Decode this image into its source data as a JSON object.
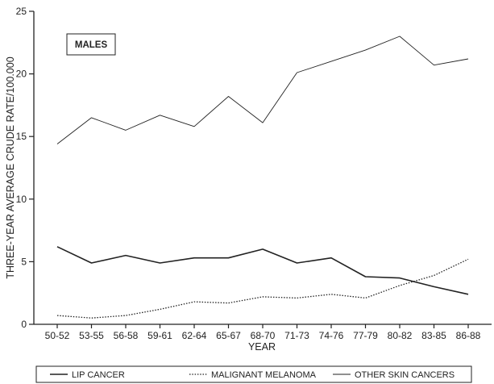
{
  "chart_data": {
    "type": "line",
    "categories": [
      "50-52",
      "53-55",
      "56-58",
      "59-61",
      "62-64",
      "65-67",
      "68-70",
      "71-73",
      "74-76",
      "77-79",
      "80-82",
      "83-85",
      "86-88"
    ],
    "series": [
      {
        "name": "LIP CANCER",
        "style": "solid",
        "values": [
          6.2,
          4.9,
          5.5,
          4.9,
          5.3,
          5.3,
          6.0,
          4.9,
          5.3,
          3.8,
          3.7,
          3.0,
          2.4
        ]
      },
      {
        "name": "MALIGNANT MELANOMA",
        "style": "dotted",
        "values": [
          0.7,
          0.5,
          0.7,
          1.2,
          1.8,
          1.7,
          2.2,
          2.1,
          2.4,
          2.1,
          3.1,
          3.9,
          5.2
        ]
      },
      {
        "name": "OTHER SKIN CANCERS",
        "style": "thin",
        "values": [
          14.4,
          16.5,
          15.5,
          16.7,
          15.8,
          18.2,
          16.1,
          20.1,
          21.0,
          21.9,
          23.0,
          20.7,
          21.2
        ]
      }
    ],
    "ylim": [
      0,
      25
    ],
    "yticks": [
      0,
      5,
      10,
      15,
      20,
      25
    ],
    "xlabel": "YEAR",
    "ylabel": "THREE-YEAR AVERAGE CRUDE RATE/100.000",
    "inset_label": "MALES",
    "legend_position": "bottom",
    "grid": false,
    "colors": {
      "line": "#222222",
      "background": "#ffffff"
    }
  }
}
